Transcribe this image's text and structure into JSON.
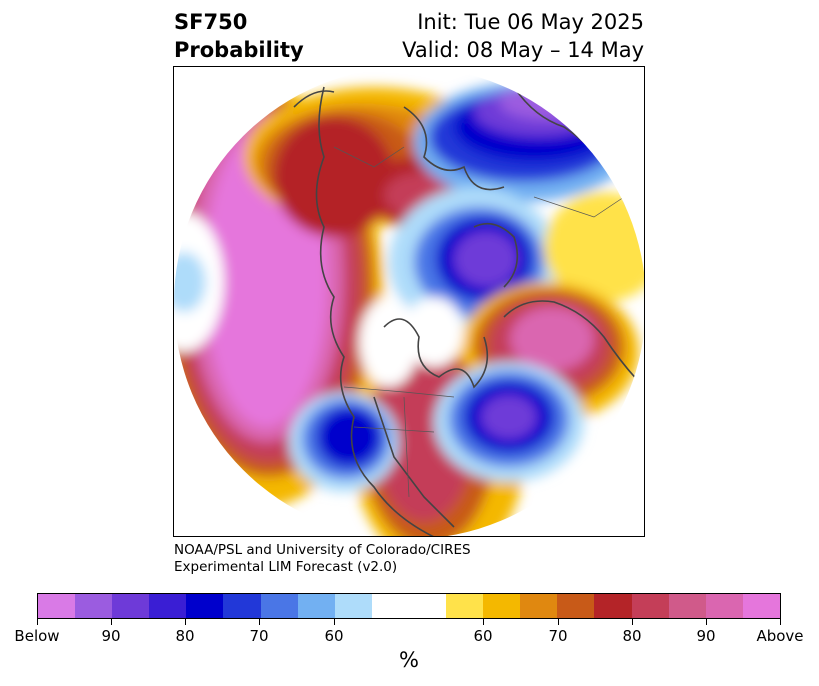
{
  "header": {
    "variable": "SF750",
    "product": "Probability",
    "init": "Init: Tue 06 May 2025",
    "valid": "Valid: 08 May – 14 May"
  },
  "credits": {
    "line1": "NOAA/PSL and University of Colorado/CIRES",
    "line2": "Experimental LIM Forecast (v2.0)"
  },
  "colorbar": {
    "unit": "%",
    "colors": [
      "#d97ae6",
      "#9b5ce0",
      "#6e3ad8",
      "#3a1ed4",
      "#0000cc",
      "#2238d8",
      "#4a76e6",
      "#72b0f2",
      "#aedcfa",
      "#ffffff",
      "#ffe24a",
      "#f4b800",
      "#e08810",
      "#c85a18",
      "#b42428",
      "#c43e58",
      "#d05a8a",
      "#da66b0",
      "#e576dc"
    ],
    "ticks": [
      "Below",
      "90",
      "80",
      "70",
      "60",
      "60",
      "70",
      "80",
      "90",
      "Above"
    ]
  },
  "map_colors": {
    "ocean": "#ffffff",
    "coast": "#444444"
  }
}
